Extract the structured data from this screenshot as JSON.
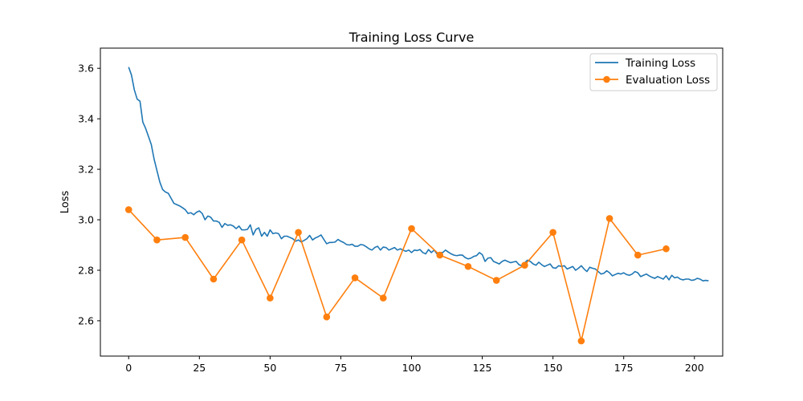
{
  "chart_data": {
    "type": "line",
    "title": "Training Loss Curve",
    "xlabel": "",
    "ylabel": "Loss",
    "xlim": [
      -10,
      210
    ],
    "ylim": [
      2.46,
      3.68
    ],
    "xticks": [
      0,
      25,
      50,
      75,
      100,
      125,
      150,
      175,
      200
    ],
    "yticks": [
      2.6,
      2.8,
      3.0,
      3.2,
      3.4,
      3.6
    ],
    "ytick_labels": [
      "2.6",
      "2.8",
      "3.0",
      "3.2",
      "3.4",
      "3.6"
    ],
    "grid": false,
    "legend_position": "top-right",
    "series": [
      {
        "name": "Training Loss",
        "color": "#1f77b4",
        "marker": "none",
        "x_start": 0,
        "x_step": 1,
        "values": [
          3.605,
          3.573,
          3.515,
          3.478,
          3.47,
          3.387,
          3.362,
          3.33,
          3.298,
          3.24,
          3.195,
          3.15,
          3.12,
          3.11,
          3.105,
          3.085,
          3.065,
          3.06,
          3.055,
          3.048,
          3.04,
          3.025,
          3.028,
          3.02,
          3.03,
          3.035,
          3.025,
          3.0,
          3.015,
          3.01,
          2.995,
          2.995,
          2.99,
          2.97,
          2.985,
          2.978,
          2.98,
          2.975,
          2.965,
          2.975,
          2.96,
          2.96,
          2.962,
          2.98,
          2.94,
          2.962,
          2.968,
          2.935,
          2.95,
          2.935,
          2.96,
          2.945,
          2.948,
          2.945,
          2.925,
          2.935,
          2.935,
          2.93,
          2.925,
          2.915,
          2.92,
          2.912,
          2.918,
          2.925,
          2.938,
          2.92,
          2.928,
          2.933,
          2.94,
          2.922,
          2.905,
          2.91,
          2.91,
          2.912,
          2.922,
          2.915,
          2.91,
          2.902,
          2.9,
          2.903,
          2.895,
          2.895,
          2.902,
          2.9,
          2.893,
          2.885,
          2.88,
          2.89,
          2.895,
          2.88,
          2.892,
          2.89,
          2.88,
          2.885,
          2.89,
          2.88,
          2.885,
          2.88,
          2.875,
          2.88,
          2.87,
          2.88,
          2.878,
          2.882,
          2.87,
          2.865,
          2.882,
          2.87,
          2.88,
          2.865,
          2.87,
          2.87,
          2.88,
          2.872,
          2.865,
          2.86,
          2.858,
          2.86,
          2.86,
          2.85,
          2.845,
          2.848,
          2.855,
          2.858,
          2.87,
          2.862,
          2.835,
          2.848,
          2.85,
          2.835,
          2.83,
          2.825,
          2.835,
          2.84,
          2.835,
          2.83,
          2.833,
          2.835,
          2.822,
          2.818,
          2.83,
          2.84,
          2.835,
          2.825,
          2.82,
          2.832,
          2.822,
          2.815,
          2.82,
          2.825,
          2.81,
          2.808,
          2.818,
          2.815,
          2.818,
          2.805,
          2.81,
          2.815,
          2.8,
          2.808,
          2.818,
          2.805,
          2.795,
          2.812,
          2.808,
          2.805,
          2.795,
          2.785,
          2.788,
          2.798,
          2.79,
          2.778,
          2.783,
          2.788,
          2.785,
          2.79,
          2.783,
          2.78,
          2.785,
          2.795,
          2.79,
          2.775,
          2.78,
          2.785,
          2.778,
          2.772,
          2.768,
          2.775,
          2.77,
          2.765,
          2.778,
          2.762,
          2.78,
          2.77,
          2.773,
          2.765,
          2.762,
          2.765,
          2.765,
          2.76,
          2.762,
          2.768,
          2.765,
          2.758,
          2.76,
          2.758
        ]
      },
      {
        "name": "Evaluation Loss",
        "color": "#ff7f0e",
        "marker": "circle",
        "x": [
          0,
          10,
          20,
          30,
          40,
          50,
          60,
          70,
          80,
          90,
          100,
          110,
          120,
          130,
          140,
          150,
          160,
          170,
          180,
          190
        ],
        "values": [
          3.04,
          2.92,
          2.93,
          2.765,
          2.92,
          2.69,
          2.95,
          2.615,
          2.77,
          2.69,
          2.965,
          2.86,
          2.815,
          2.76,
          2.82,
          2.95,
          2.52,
          3.005,
          2.86,
          2.885
        ]
      }
    ]
  }
}
